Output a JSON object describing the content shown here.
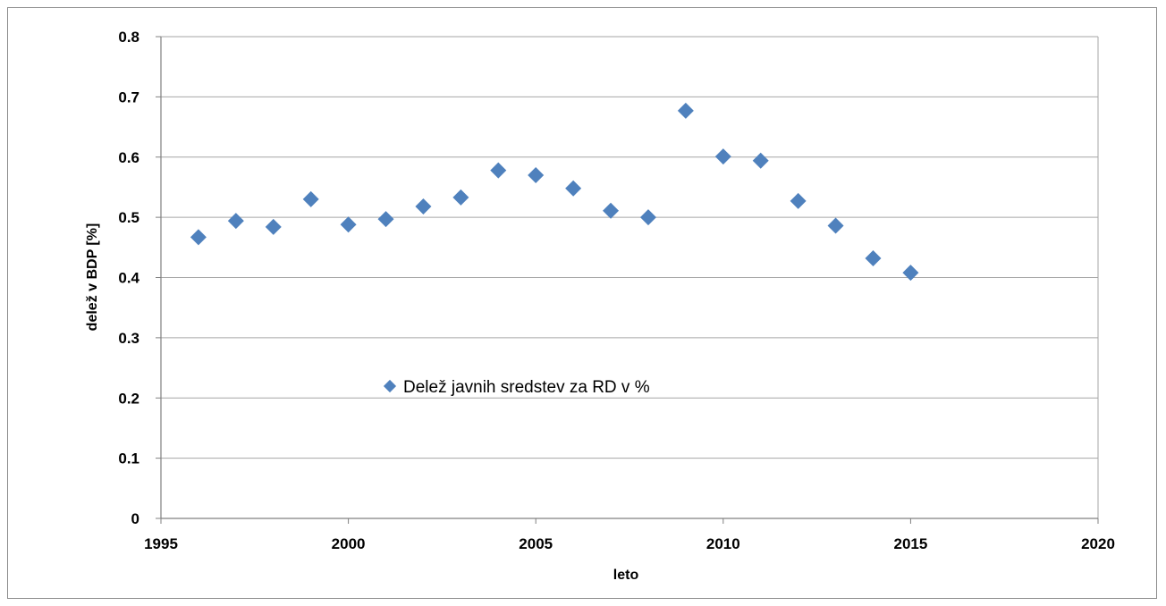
{
  "chart_data": {
    "type": "scatter",
    "title": "",
    "xlabel": "leto",
    "ylabel": "delež v BDP [%]",
    "xlim": [
      1995,
      2020
    ],
    "ylim": [
      0,
      0.8
    ],
    "xticks": [
      1995,
      2000,
      2005,
      2010,
      2015,
      2020
    ],
    "yticks": [
      0,
      0.1,
      0.2,
      0.3,
      0.4,
      0.5,
      0.6,
      0.7,
      0.8
    ],
    "grid": "horizontal",
    "legend_position": "center-left",
    "series": [
      {
        "name": "Delež javnih sredstev za RD v %",
        "color": "#4f81bd",
        "marker": "diamond",
        "x": [
          1996,
          1997,
          1998,
          1999,
          2000,
          2001,
          2002,
          2003,
          2004,
          2005,
          2006,
          2007,
          2008,
          2009,
          2010,
          2011,
          2012,
          2013,
          2014,
          2015
        ],
        "y": [
          0.467,
          0.494,
          0.484,
          0.53,
          0.488,
          0.497,
          0.518,
          0.533,
          0.578,
          0.57,
          0.548,
          0.511,
          0.5,
          0.677,
          0.601,
          0.594,
          0.527,
          0.486,
          0.432,
          0.408
        ]
      }
    ]
  }
}
